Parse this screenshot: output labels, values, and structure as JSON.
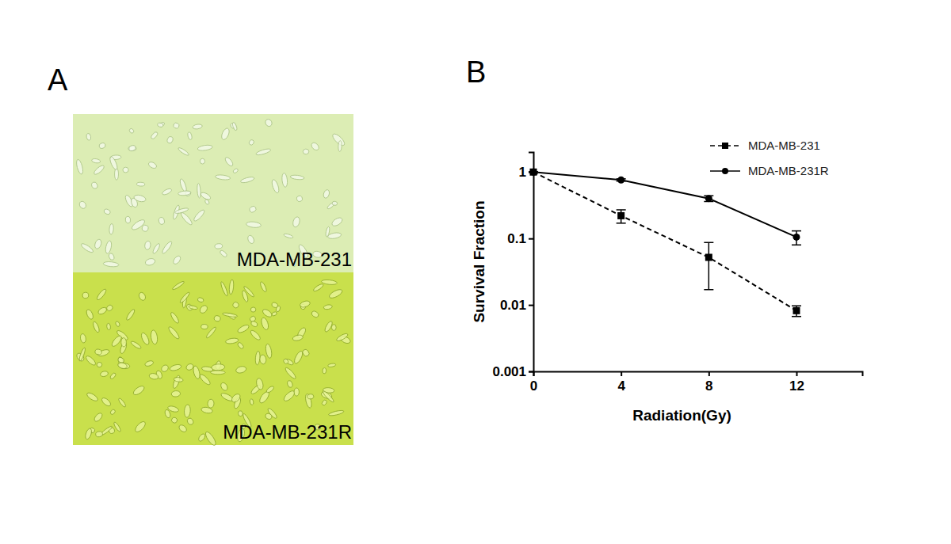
{
  "panel_labels": [
    "A",
    "B"
  ],
  "panel_a": {
    "images": [
      {
        "label": "MDA-MB-231",
        "color": "#dcedb4"
      },
      {
        "label": "MDA-MB-231R",
        "color": "#c9e04c"
      }
    ]
  },
  "chart_data": {
    "type": "line",
    "x_label": "Radiation(Gy)",
    "y_label": "Survival Fraction",
    "x": [
      0,
      4,
      8,
      12
    ],
    "series": [
      {
        "name": "MDA-MB-231",
        "color": "#000000",
        "marker": "square",
        "line_style": "dashed",
        "values": [
          1,
          0.22,
          0.052,
          0.0082
        ],
        "errors": [
          0,
          0.05,
          0.035,
          0.0015
        ]
      },
      {
        "name": "MDA-MB-231R",
        "color": "#000000",
        "marker": "circle",
        "line_style": "solid",
        "values": [
          1,
          0.76,
          0.4,
          0.105
        ],
        "errors": [
          0,
          0.03,
          0.04,
          0.025
        ]
      }
    ],
    "xlim": [
      0,
      15
    ],
    "xticks": [
      0,
      4,
      8,
      12
    ],
    "ylim": [
      0.001,
      2
    ],
    "yticks": [
      0.001,
      0.01,
      0.1,
      1
    ],
    "log": "y",
    "grid": false,
    "legend": "upper right"
  }
}
